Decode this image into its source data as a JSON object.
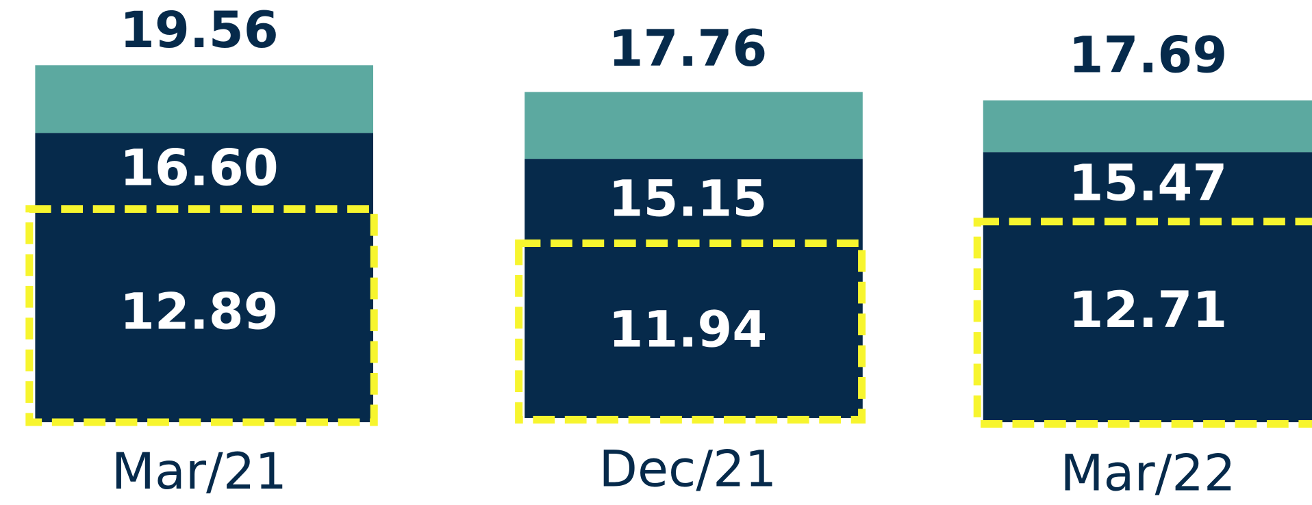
{
  "bars": [
    {
      "category": "Mar/21",
      "total": "19.56",
      "middle": "16.60",
      "bottom": "12.89"
    },
    {
      "category": "Dec/21",
      "total": "17.76",
      "middle": "15.15",
      "bottom": "11.94"
    },
    {
      "category": "Mar/22",
      "total": "17.69",
      "middle": "15.47",
      "bottom": "12.71"
    }
  ]
}
